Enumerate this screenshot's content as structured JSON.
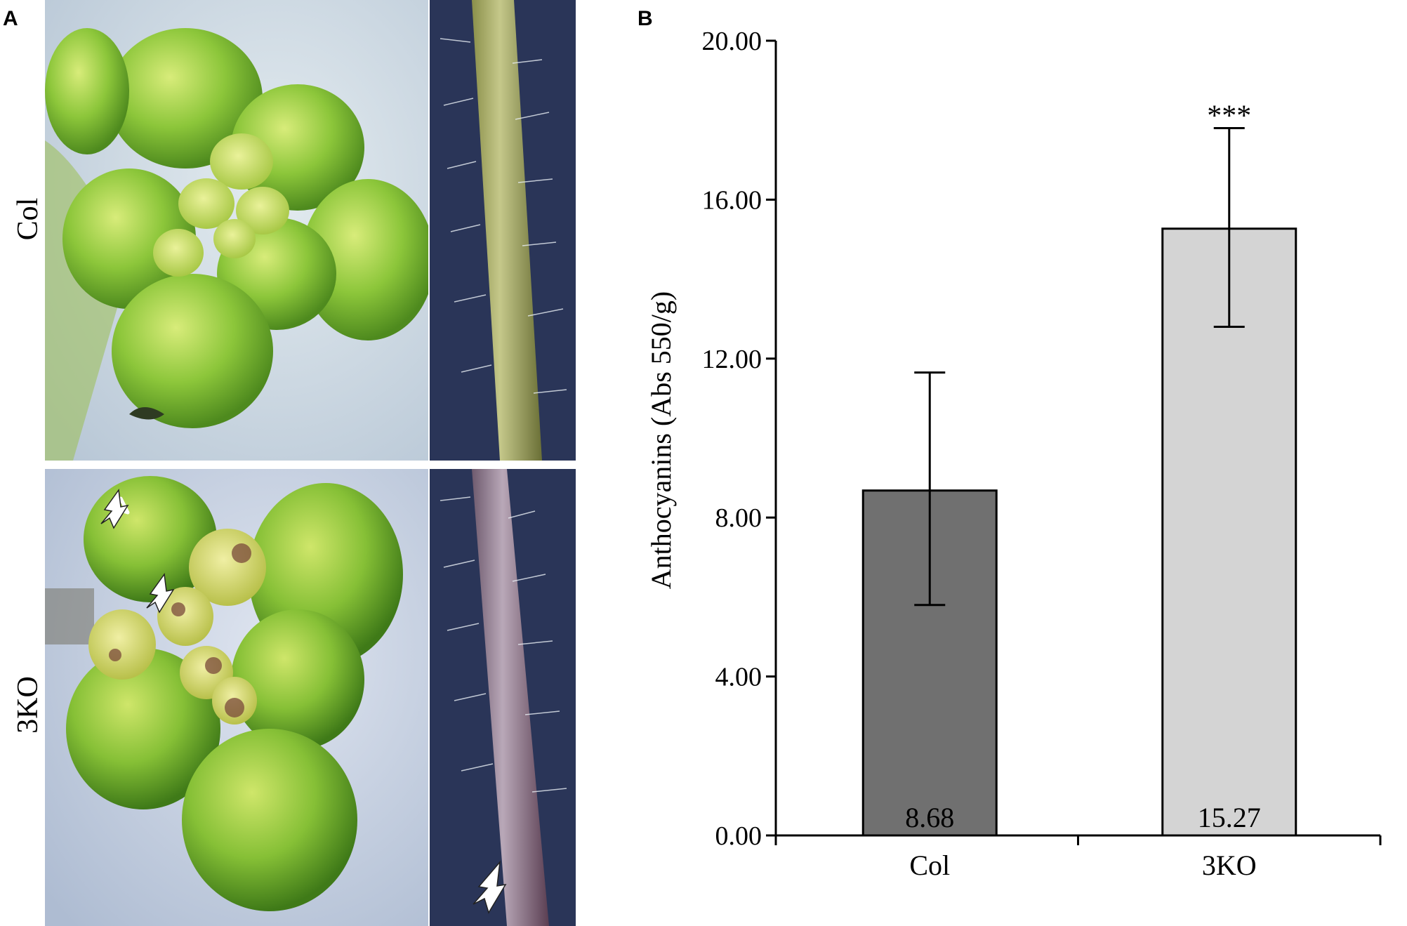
{
  "panel_a": {
    "letter": "A",
    "rows": [
      {
        "label": "Col"
      },
      {
        "label": "3KO"
      }
    ]
  },
  "panel_b": {
    "letter": "B"
  },
  "chart_data": {
    "type": "bar",
    "categories": [
      "Col",
      "3KO"
    ],
    "values": [
      8.68,
      15.27
    ],
    "value_labels": [
      "8.68",
      "15.27"
    ],
    "error_low": [
      5.8,
      12.8
    ],
    "error_high": [
      11.65,
      17.8
    ],
    "bar_colors": [
      "#707070",
      "#d4d4d4"
    ],
    "significance": [
      "",
      "***"
    ],
    "ylabel": "Anthocyanins (Abs 550/g)",
    "xlabel": "",
    "ylim": [
      0,
      20
    ],
    "yticks": [
      "0.00",
      "4.00",
      "8.00",
      "12.00",
      "16.00",
      "20.00"
    ],
    "ytick_values": [
      0,
      4,
      8,
      12,
      16,
      20
    ],
    "grid": false
  }
}
